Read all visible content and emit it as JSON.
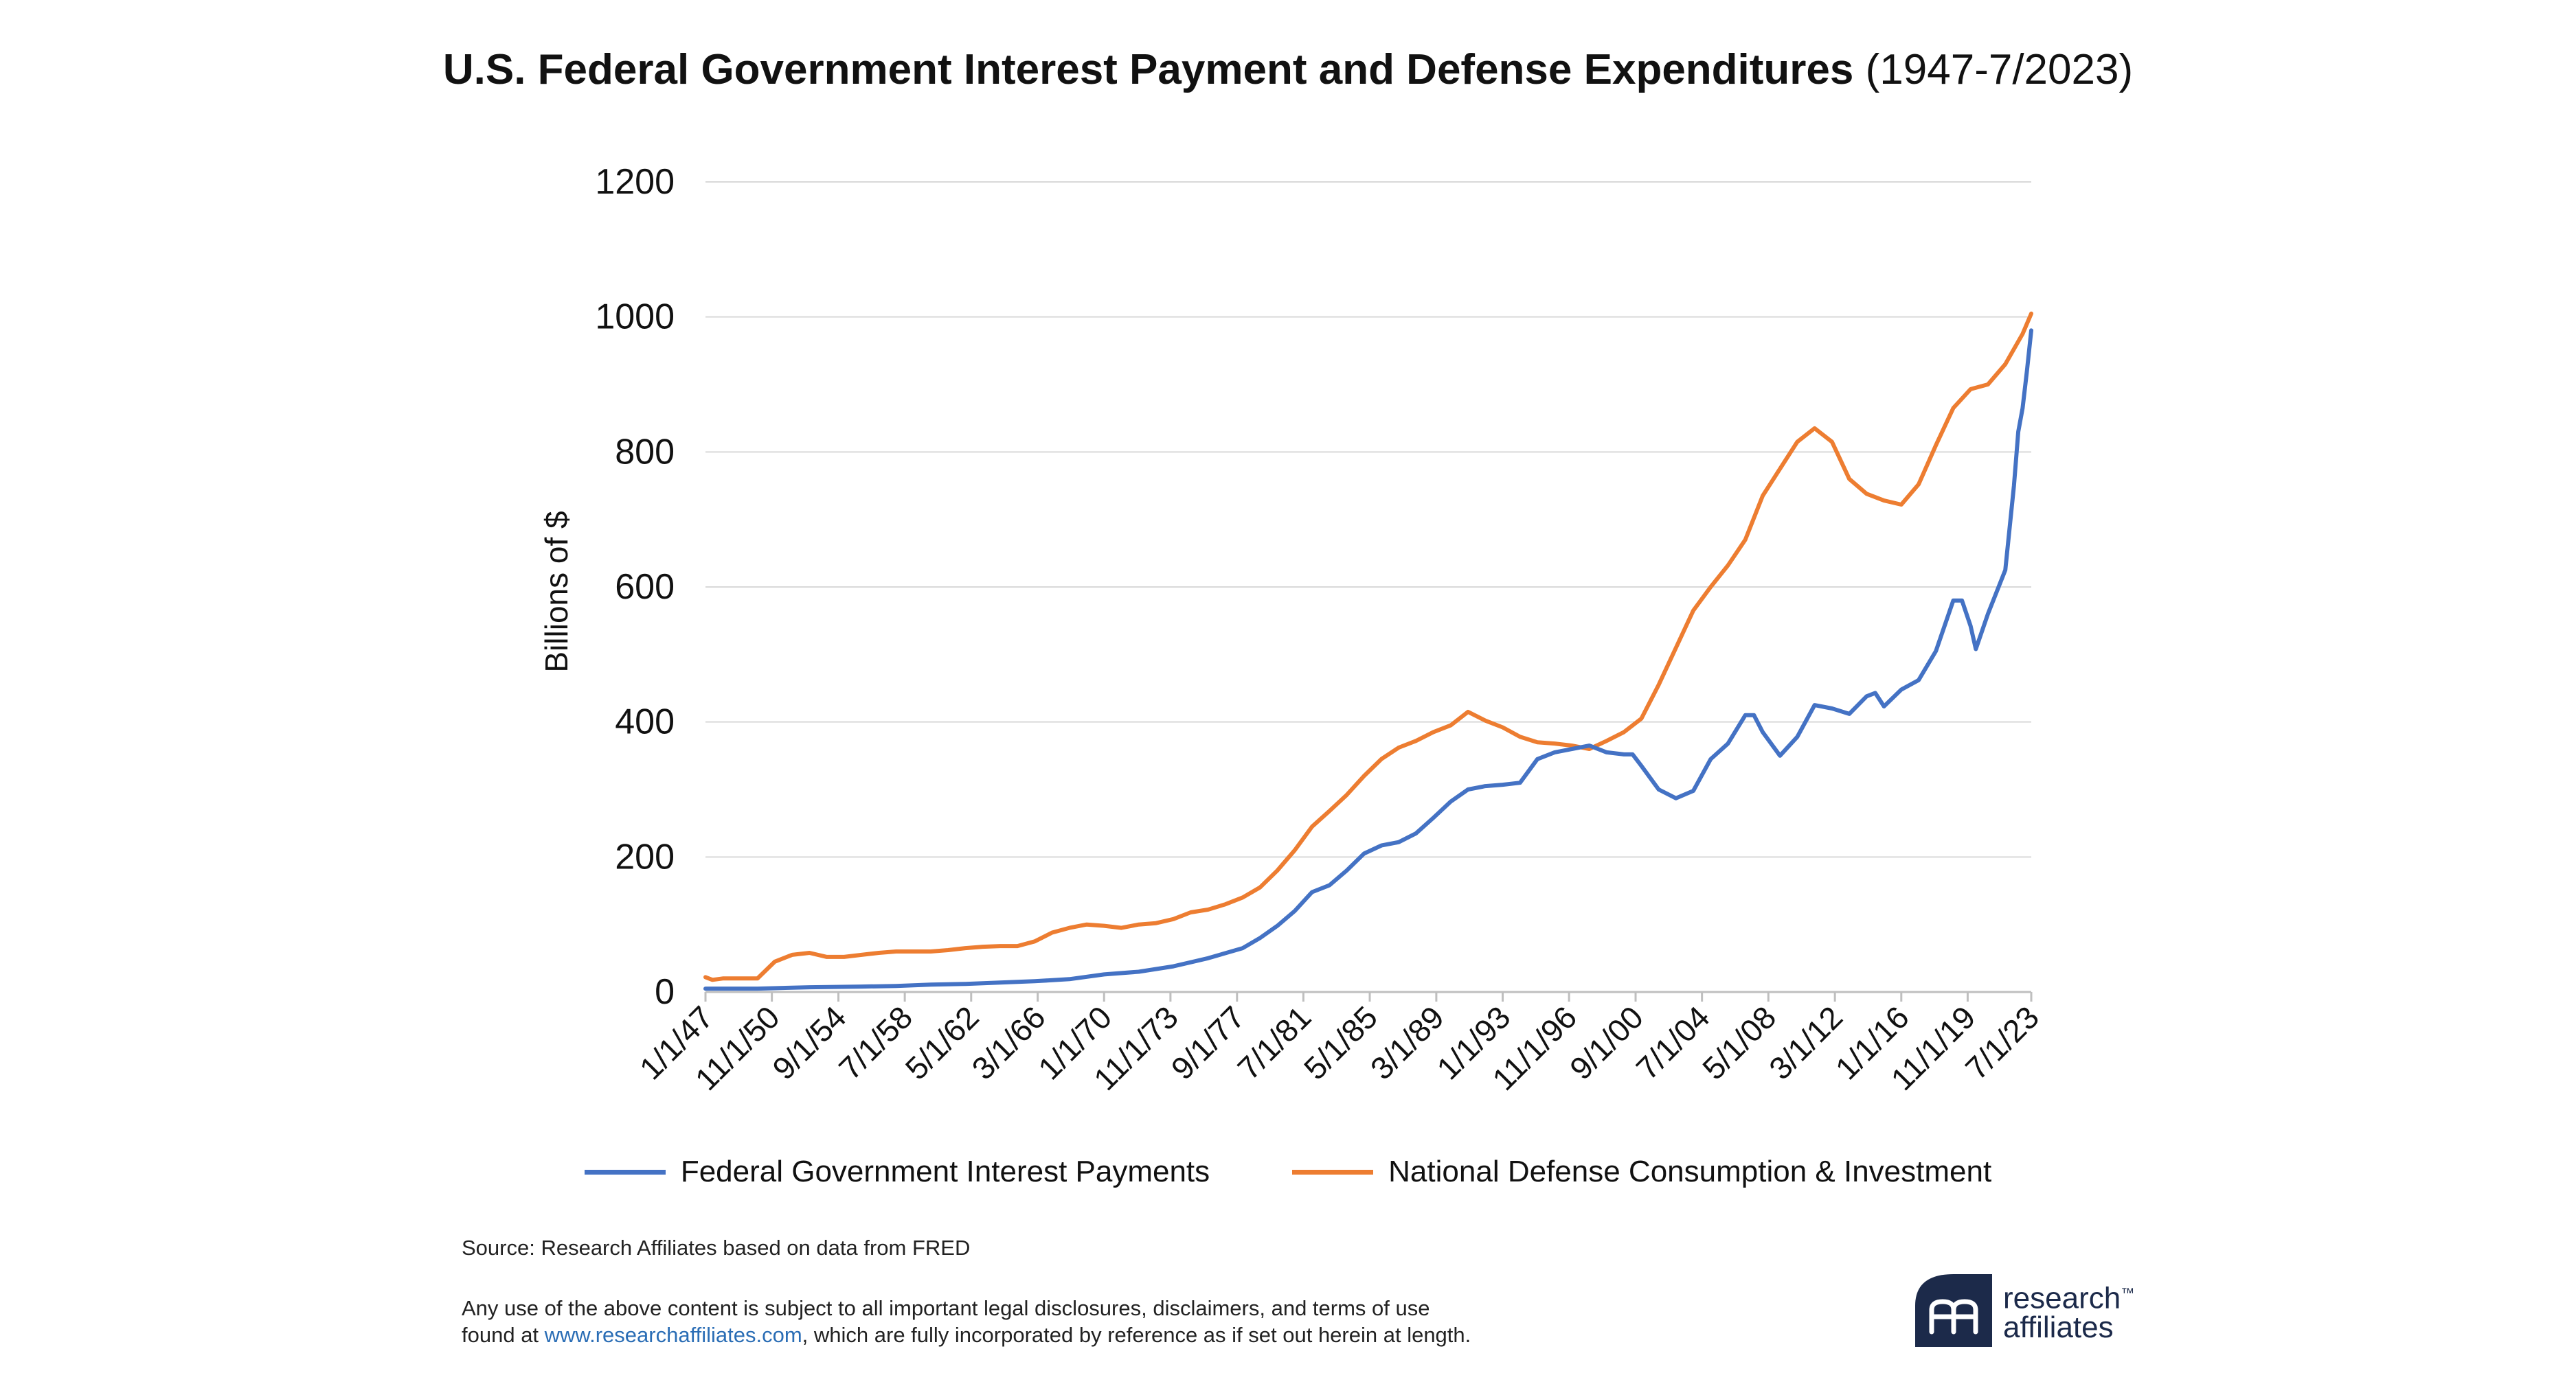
{
  "title": {
    "bold": "U.S. Federal Government Interest Payment and Defense Expenditures",
    "normal": " (1947-7/2023)"
  },
  "footer": {
    "source": "Source: Research Affiliates based on data from FRED",
    "disclaimer_line1": "Any use of the above content is subject to all important legal disclosures, disclaimers, and terms of use",
    "disclaimer_prefix": "found at ",
    "disclaimer_link": "www.researchaffiliates.com",
    "disclaimer_suffix": ", which are fully incorporated by reference as if set out herein at length."
  },
  "logo": {
    "line1": "research",
    "tm": "™",
    "line2": "affiliates",
    "color": "#1c2a4a"
  },
  "colors": {
    "interest": "#4472c4",
    "defense": "#ed7d31",
    "grid": "#d9d9d9"
  },
  "chart_data": {
    "type": "line",
    "title": "U.S. Federal Government Interest Payment and Defense Expenditures (1947-7/2023)",
    "ylabel": "Billions of $",
    "xlabel": "",
    "ylim": [
      0,
      1200
    ],
    "yticks": [
      "0",
      "200",
      "400",
      "600",
      "800",
      "1000",
      "1200"
    ],
    "xlim": [
      1947.0,
      2023.5
    ],
    "xticks": [
      {
        "label": "1/1/47",
        "t": 1947.0
      },
      {
        "label": "11/1/50",
        "t": 1950.83
      },
      {
        "label": "9/1/54",
        "t": 1954.67
      },
      {
        "label": "7/1/58",
        "t": 1958.5
      },
      {
        "label": "5/1/62",
        "t": 1962.33
      },
      {
        "label": "3/1/66",
        "t": 1966.17
      },
      {
        "label": "1/1/70",
        "t": 1970.0
      },
      {
        "label": "11/1/73",
        "t": 1973.83
      },
      {
        "label": "9/1/77",
        "t": 1977.67
      },
      {
        "label": "7/1/81",
        "t": 1981.5
      },
      {
        "label": "5/1/85",
        "t": 1985.33
      },
      {
        "label": "3/1/89",
        "t": 1989.17
      },
      {
        "label": "1/1/93",
        "t": 1993.0
      },
      {
        "label": "11/1/96",
        "t": 1996.83
      },
      {
        "label": "9/1/00",
        "t": 2000.67
      },
      {
        "label": "7/1/04",
        "t": 2004.5
      },
      {
        "label": "5/1/08",
        "t": 2008.33
      },
      {
        "label": "3/1/12",
        "t": 2012.17
      },
      {
        "label": "1/1/16",
        "t": 2016.0
      },
      {
        "label": "11/1/19",
        "t": 2019.83
      },
      {
        "label": "7/1/23",
        "t": 2023.5
      }
    ],
    "grid": true,
    "legend_position": "bottom",
    "series": [
      {
        "name": "Federal Government Interest Payments",
        "color": "#4472c4",
        "points": [
          [
            1947.0,
            5
          ],
          [
            1950.0,
            5
          ],
          [
            1953.0,
            7
          ],
          [
            1956.0,
            8
          ],
          [
            1958.0,
            9
          ],
          [
            1960.0,
            11
          ],
          [
            1962.0,
            12
          ],
          [
            1964.0,
            14
          ],
          [
            1966.0,
            16
          ],
          [
            1968.0,
            19
          ],
          [
            1970.0,
            26
          ],
          [
            1972.0,
            30
          ],
          [
            1974.0,
            38
          ],
          [
            1976.0,
            50
          ],
          [
            1978.0,
            65
          ],
          [
            1979.0,
            80
          ],
          [
            1980.0,
            98
          ],
          [
            1981.0,
            120
          ],
          [
            1982.0,
            148
          ],
          [
            1983.0,
            158
          ],
          [
            1984.0,
            180
          ],
          [
            1985.0,
            205
          ],
          [
            1986.0,
            217
          ],
          [
            1987.0,
            222
          ],
          [
            1988.0,
            235
          ],
          [
            1989.0,
            258
          ],
          [
            1990.0,
            282
          ],
          [
            1991.0,
            300
          ],
          [
            1992.0,
            305
          ],
          [
            1993.0,
            307
          ],
          [
            1994.0,
            310
          ],
          [
            1995.0,
            345
          ],
          [
            1996.0,
            355
          ],
          [
            1997.0,
            360
          ],
          [
            1998.0,
            365
          ],
          [
            1999.0,
            355
          ],
          [
            2000.0,
            352
          ],
          [
            2000.5,
            352
          ],
          [
            2001.0,
            335
          ],
          [
            2002.0,
            300
          ],
          [
            2003.0,
            287
          ],
          [
            2004.0,
            298
          ],
          [
            2005.0,
            345
          ],
          [
            2006.0,
            368
          ],
          [
            2007.0,
            410
          ],
          [
            2007.5,
            410
          ],
          [
            2008.0,
            385
          ],
          [
            2009.0,
            350
          ],
          [
            2010.0,
            378
          ],
          [
            2011.0,
            425
          ],
          [
            2012.0,
            420
          ],
          [
            2013.0,
            412
          ],
          [
            2014.0,
            438
          ],
          [
            2014.5,
            443
          ],
          [
            2015.0,
            423
          ],
          [
            2016.0,
            448
          ],
          [
            2017.0,
            462
          ],
          [
            2018.0,
            505
          ],
          [
            2019.0,
            580
          ],
          [
            2019.5,
            580
          ],
          [
            2020.0,
            542
          ],
          [
            2020.3,
            508
          ],
          [
            2021.0,
            560
          ],
          [
            2022.0,
            625
          ],
          [
            2022.5,
            750
          ],
          [
            2022.75,
            830
          ],
          [
            2023.0,
            865
          ],
          [
            2023.25,
            920
          ],
          [
            2023.5,
            980
          ]
        ]
      },
      {
        "name": "National Defense Consumption & Investment",
        "color": "#ed7d31",
        "points": [
          [
            1947.0,
            22
          ],
          [
            1947.4,
            18
          ],
          [
            1948.0,
            20
          ],
          [
            1950.0,
            20
          ],
          [
            1951.0,
            45
          ],
          [
            1952.0,
            55
          ],
          [
            1953.0,
            58
          ],
          [
            1954.0,
            52
          ],
          [
            1955.0,
            52
          ],
          [
            1956.0,
            55
          ],
          [
            1957.0,
            58
          ],
          [
            1958.0,
            60
          ],
          [
            1960.0,
            60
          ],
          [
            1961.0,
            62
          ],
          [
            1962.0,
            65
          ],
          [
            1963.0,
            67
          ],
          [
            1964.0,
            68
          ],
          [
            1965.0,
            68
          ],
          [
            1966.0,
            75
          ],
          [
            1967.0,
            88
          ],
          [
            1968.0,
            95
          ],
          [
            1969.0,
            100
          ],
          [
            1970.0,
            98
          ],
          [
            1971.0,
            95
          ],
          [
            1972.0,
            100
          ],
          [
            1973.0,
            102
          ],
          [
            1974.0,
            108
          ],
          [
            1975.0,
            118
          ],
          [
            1976.0,
            122
          ],
          [
            1977.0,
            130
          ],
          [
            1978.0,
            140
          ],
          [
            1979.0,
            155
          ],
          [
            1980.0,
            180
          ],
          [
            1981.0,
            210
          ],
          [
            1982.0,
            245
          ],
          [
            1983.0,
            268
          ],
          [
            1984.0,
            292
          ],
          [
            1985.0,
            320
          ],
          [
            1986.0,
            345
          ],
          [
            1987.0,
            362
          ],
          [
            1988.0,
            372
          ],
          [
            1989.0,
            385
          ],
          [
            1990.0,
            395
          ],
          [
            1991.0,
            415
          ],
          [
            1992.0,
            402
          ],
          [
            1993.0,
            392
          ],
          [
            1994.0,
            378
          ],
          [
            1995.0,
            370
          ],
          [
            1996.0,
            368
          ],
          [
            1997.0,
            365
          ],
          [
            1998.0,
            360
          ],
          [
            1999.0,
            372
          ],
          [
            2000.0,
            385
          ],
          [
            2001.0,
            405
          ],
          [
            2002.0,
            455
          ],
          [
            2003.0,
            510
          ],
          [
            2004.0,
            565
          ],
          [
            2005.0,
            600
          ],
          [
            2006.0,
            632
          ],
          [
            2007.0,
            670
          ],
          [
            2008.0,
            735
          ],
          [
            2009.0,
            775
          ],
          [
            2010.0,
            815
          ],
          [
            2011.0,
            835
          ],
          [
            2012.0,
            815
          ],
          [
            2013.0,
            760
          ],
          [
            2014.0,
            738
          ],
          [
            2015.0,
            728
          ],
          [
            2016.0,
            722
          ],
          [
            2017.0,
            752
          ],
          [
            2018.0,
            810
          ],
          [
            2019.0,
            865
          ],
          [
            2020.0,
            893
          ],
          [
            2021.0,
            900
          ],
          [
            2022.0,
            930
          ],
          [
            2023.0,
            975
          ],
          [
            2023.5,
            1005
          ]
        ]
      }
    ]
  }
}
